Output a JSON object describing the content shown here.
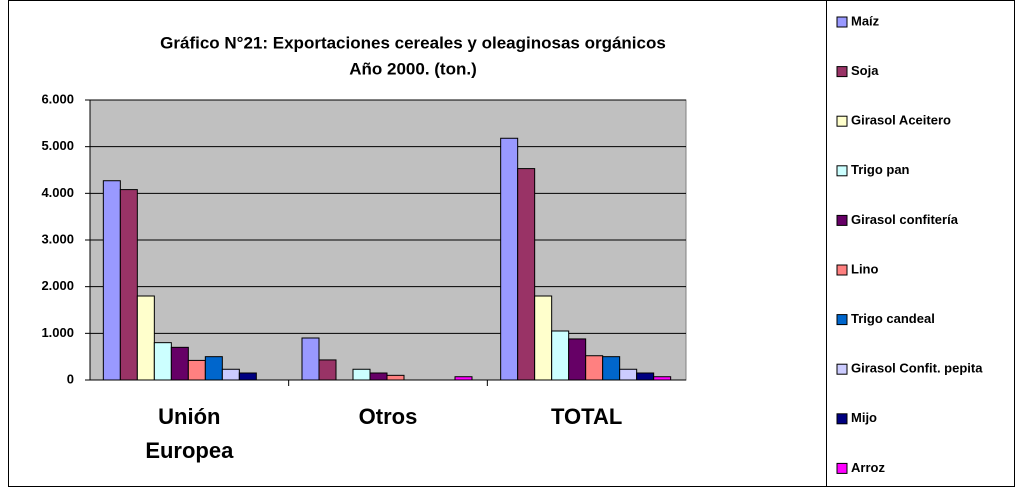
{
  "chart_data": {
    "type": "bar",
    "title": "Gráfico N°21: Exportaciones cereales y oleaginosas  orgánicos",
    "subtitle": "Año 2000. (ton.)",
    "categories": [
      "Unión Europea",
      "Otros",
      "TOTAL"
    ],
    "series": [
      {
        "name": "Maíz",
        "color": "#9999ff",
        "values": [
          4270,
          900,
          5180
        ]
      },
      {
        "name": "Soja",
        "color": "#993366",
        "values": [
          4080,
          430,
          4530
        ]
      },
      {
        "name": "Girasol Aceitero",
        "color": "#ffffcc",
        "values": [
          1800,
          0,
          1800
        ]
      },
      {
        "name": "Trigo pan",
        "color": "#ccffff",
        "values": [
          800,
          230,
          1050
        ]
      },
      {
        "name": "Girasol confitería",
        "color": "#660066",
        "values": [
          700,
          150,
          880
        ]
      },
      {
        "name": "Lino",
        "color": "#ff8080",
        "values": [
          420,
          100,
          520
        ]
      },
      {
        "name": "Trigo candeal",
        "color": "#0066cc",
        "values": [
          500,
          0,
          500
        ]
      },
      {
        "name": "Girasol Confit. pepita",
        "color": "#ccccff",
        "values": [
          230,
          0,
          230
        ]
      },
      {
        "name": "Mijo",
        "color": "#000080",
        "values": [
          150,
          0,
          150
        ]
      },
      {
        "name": "Arroz",
        "color": "#ff00ff",
        "values": [
          0,
          70,
          70
        ]
      }
    ],
    "ylim": [
      0,
      6000
    ],
    "yticks": [
      0,
      {
        "value": 1000,
        "label": "1.000"
      },
      {
        "value": 2000,
        "label": "2.000"
      },
      {
        "value": 3000,
        "label": "3.000"
      },
      {
        "value": 4000,
        "label": "4.000"
      },
      {
        "value": 5000,
        "label": "5.000"
      },
      {
        "value": 6000,
        "label": "6.000"
      }
    ],
    "grid": true,
    "legend": "right"
  }
}
